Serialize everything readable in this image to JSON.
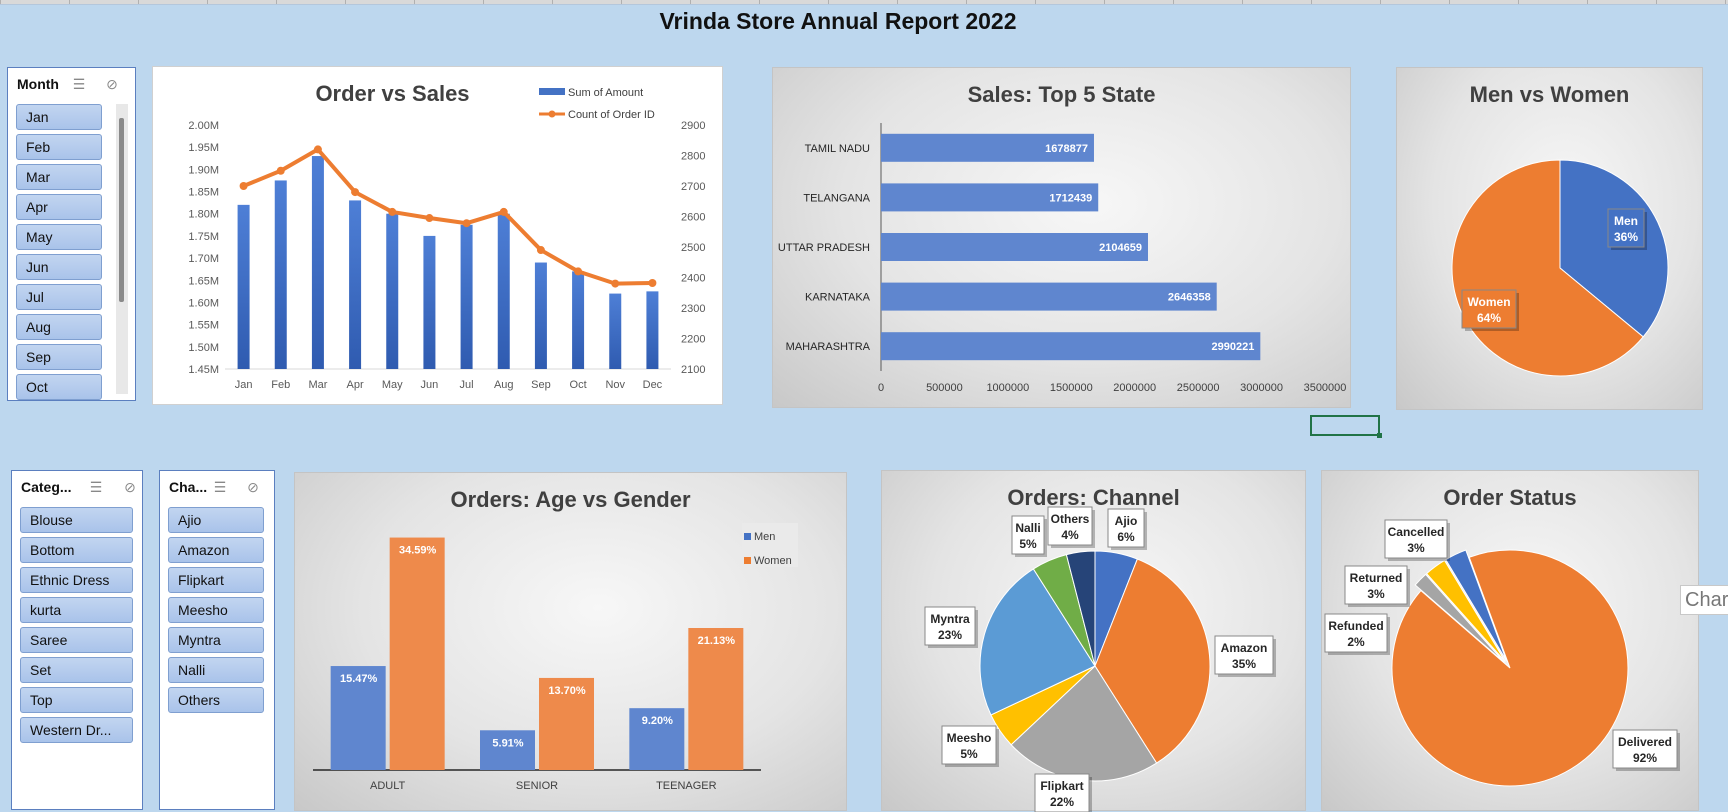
{
  "report_title": "Vrinda Store Annual Report 2022",
  "tooltip_label": "Chart",
  "slicers": {
    "month": {
      "title": "Month",
      "items": [
        "Jan",
        "Feb",
        "Mar",
        "Apr",
        "May",
        "Jun",
        "Jul",
        "Aug",
        "Sep",
        "Oct"
      ]
    },
    "category": {
      "title": "Categ...",
      "items": [
        "Blouse",
        "Bottom",
        "Ethnic Dress",
        "kurta",
        "Saree",
        "Set",
        "Top",
        "Western Dr..."
      ]
    },
    "channel": {
      "title": "Cha...",
      "items": [
        "Ajio",
        "Amazon",
        "Flipkart",
        "Meesho",
        "Myntra",
        "Nalli",
        "Others"
      ]
    }
  },
  "icons": {
    "multiselect": "multi-select-icon",
    "clear_filter": "clear-filter-icon"
  },
  "colors": {
    "blue": "#4472c4",
    "orange": "#ed7d31",
    "gray": "#a5a5a5",
    "yellow": "#ffc000",
    "lightblue": "#5b9bd5",
    "green": "#70ad47",
    "navy": "#264478"
  },
  "chart_data": [
    {
      "id": "order_vs_sales",
      "type": "bar+line",
      "title": "Order vs Sales",
      "categories": [
        "Jan",
        "Feb",
        "Mar",
        "Apr",
        "May",
        "Jun",
        "Jul",
        "Aug",
        "Sep",
        "Oct",
        "Nov",
        "Dec"
      ],
      "series": [
        {
          "name": "Sum of Amount",
          "type": "bar",
          "axis": "left",
          "values": [
            1.82,
            1.875,
            1.93,
            1.83,
            1.8,
            1.75,
            1.775,
            1.8,
            1.69,
            1.67,
            1.62,
            1.625
          ]
        },
        {
          "name": "Count of Order ID",
          "type": "line",
          "axis": "right",
          "values": [
            2700,
            2750,
            2820,
            2680,
            2615,
            2595,
            2578,
            2615,
            2490,
            2420,
            2380,
            2382
          ]
        }
      ],
      "ylim_left": [
        1.45,
        2.0
      ],
      "yticks_left": [
        "1.45M",
        "1.50M",
        "1.55M",
        "1.60M",
        "1.65M",
        "1.70M",
        "1.75M",
        "1.80M",
        "1.85M",
        "1.90M",
        "1.95M",
        "2.00M"
      ],
      "ylim_right": [
        2100,
        2900
      ],
      "yticks_right": [
        "2100",
        "2200",
        "2300",
        "2400",
        "2500",
        "2600",
        "2700",
        "2800",
        "2900"
      ],
      "legend": "top-right"
    },
    {
      "id": "top5_state",
      "type": "bar-horizontal",
      "title": "Sales: Top 5 State",
      "categories": [
        "TAMIL NADU",
        "TELANGANA",
        "UTTAR PRADESH",
        "KARNATAKA",
        "MAHARASHTRA"
      ],
      "values": [
        1678877,
        1712439,
        2104659,
        2646358,
        2990221
      ],
      "data_labels": [
        "1678877",
        "1712439",
        "2104659",
        "2646358",
        "2990221"
      ],
      "xlim": [
        0,
        3500000
      ],
      "xticks": [
        "0",
        "500000",
        "1000000",
        "1500000",
        "2000000",
        "2500000",
        "3000000",
        "3500000"
      ]
    },
    {
      "id": "men_vs_women",
      "type": "pie",
      "title": "Men vs Women",
      "labels": [
        "Men",
        "Women"
      ],
      "values": [
        36,
        64
      ],
      "data_labels": [
        "36%",
        "64%"
      ]
    },
    {
      "id": "age_vs_gender",
      "type": "bar",
      "title": "Orders: Age vs Gender",
      "categories": [
        "ADULT",
        "SENIOR",
        "TEENAGER"
      ],
      "series": [
        {
          "name": "Men",
          "values": [
            15.47,
            5.91,
            9.2
          ],
          "data_labels": [
            "15.47%",
            "5.91%",
            "9.20%"
          ]
        },
        {
          "name": "Women",
          "values": [
            34.59,
            13.7,
            21.13
          ],
          "data_labels": [
            "34.59%",
            "13.70%",
            "21.13%"
          ]
        }
      ],
      "legend": "top-right"
    },
    {
      "id": "orders_channel",
      "type": "pie",
      "title": "Orders: Channel",
      "labels": [
        "Ajio",
        "Amazon",
        "Flipkart",
        "Meesho",
        "Myntra",
        "Nalli",
        "Others"
      ],
      "values": [
        6,
        35,
        22,
        5,
        23,
        5,
        4
      ],
      "data_labels": [
        "6%",
        "35%",
        "22%",
        "5%",
        "23%",
        "5%",
        "4%"
      ]
    },
    {
      "id": "order_status",
      "type": "pie",
      "title": "Order Status",
      "labels": [
        "Cancelled",
        "Delivered",
        "Refunded",
        "Returned"
      ],
      "values": [
        3,
        92,
        2,
        3
      ],
      "data_labels": [
        "3%",
        "92%",
        "2%",
        "3%"
      ]
    }
  ]
}
